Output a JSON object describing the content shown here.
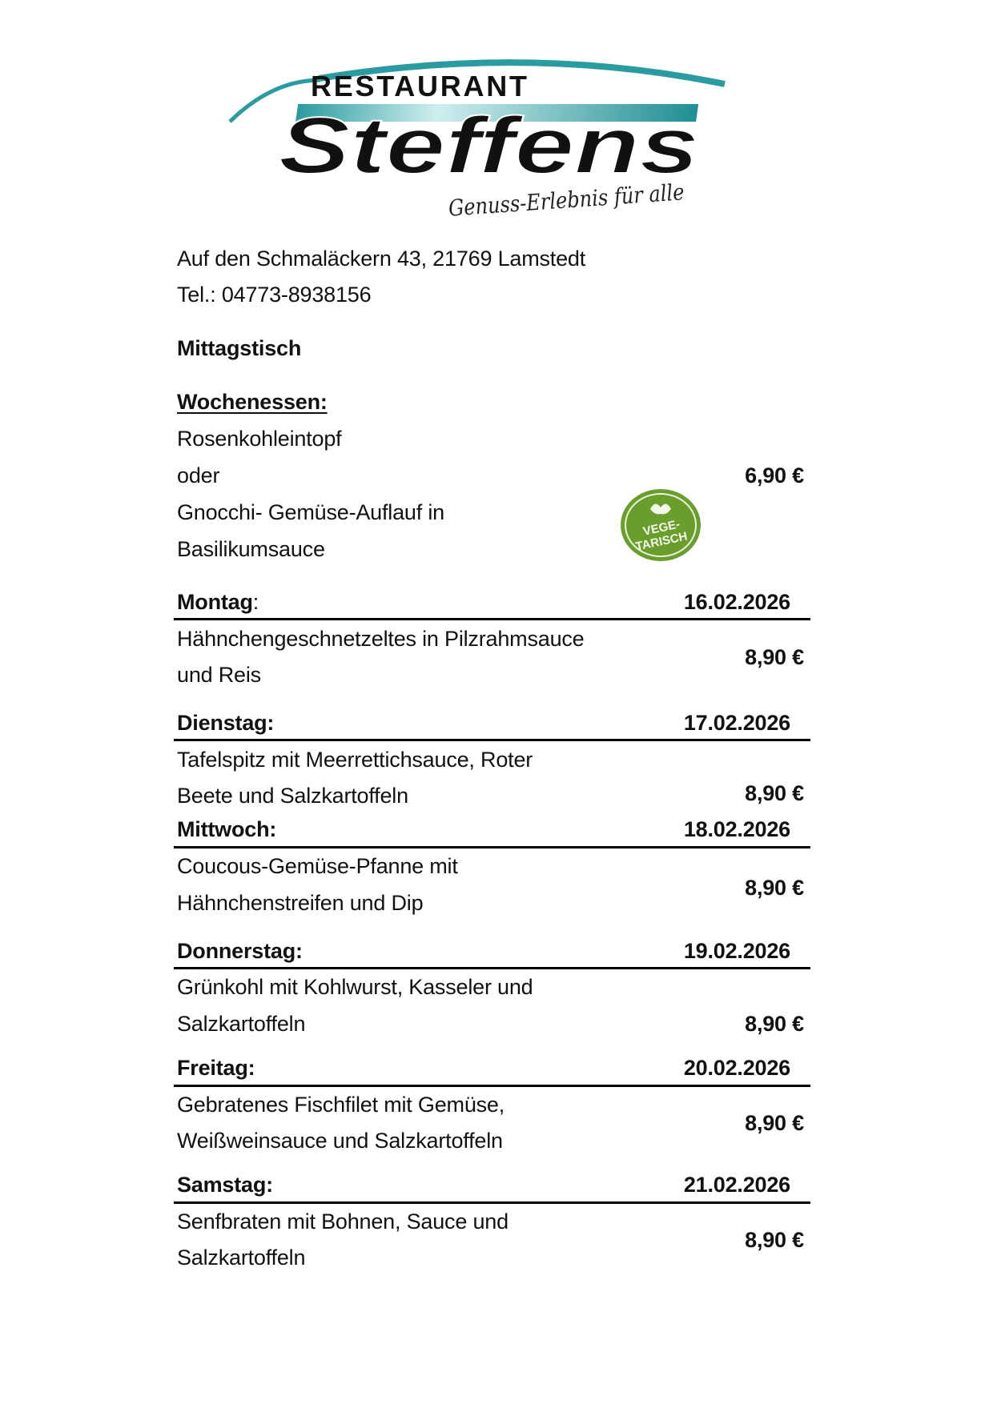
{
  "logo": {
    "top": "RESTAURANT",
    "name": "Steffens",
    "tagline": "Genuss-Erlebnis für alle",
    "teal": "#2a9ba0"
  },
  "address": "Auf den Schmaläckern 43, 21769 Lamstedt",
  "phone": "Tel.: 04773-8938156",
  "section_title": "Mittagstisch",
  "weekly": {
    "heading": "Wochenessen:",
    "lines": [
      "Rosenkohleintopf",
      "oder",
      "Gnocchi- Gemüse-Auflauf in",
      "Basilikumsauce"
    ],
    "price": "6,90 €",
    "badge": {
      "icon": "vegetarian-leaf-badge",
      "line1": "VEGE-",
      "line2": "TARISCH",
      "color": "#6a9e2c"
    }
  },
  "days": [
    {
      "day": "Montag",
      "suffix": ":",
      "date": "16.02.2026",
      "lines": [
        "Hähnchengeschnetzeltes in Pilzrahmsauce",
        "und Reis"
      ],
      "price": "8,90 €"
    },
    {
      "day": "Dienstag:",
      "suffix": "",
      "date": "17.02.2026",
      "lines": [
        "Tafelspitz mit Meerrettichsauce, Roter",
        "Beete und Salzkartoffeln"
      ],
      "price": "8,90 €"
    },
    {
      "day": "Mittwoch:",
      "suffix": "",
      "date": "18.02.2026",
      "lines": [
        "Coucous-Gemüse-Pfanne mit",
        "Hähnchenstreifen und Dip"
      ],
      "price": "8,90 €"
    },
    {
      "day": "Donnerstag:",
      "suffix": "",
      "date": "19.02.2026",
      "lines": [
        "Grünkohl mit Kohlwurst, Kasseler und",
        "Salzkartoffeln"
      ],
      "price": "8,90 €"
    },
    {
      "day": "Freitag:",
      "suffix": "",
      "date": "20.02.2026",
      "lines": [
        "Gebratenes Fischfilet mit Gemüse,",
        "Weißweinsauce und Salzkartoffeln"
      ],
      "price": "8,90 €"
    },
    {
      "day": "Samstag:",
      "suffix": "",
      "date": "21.02.2026",
      "lines": [
        "Senfbraten mit Bohnen, Sauce und",
        "Salzkartoffeln"
      ],
      "price": "8,90 €"
    }
  ]
}
